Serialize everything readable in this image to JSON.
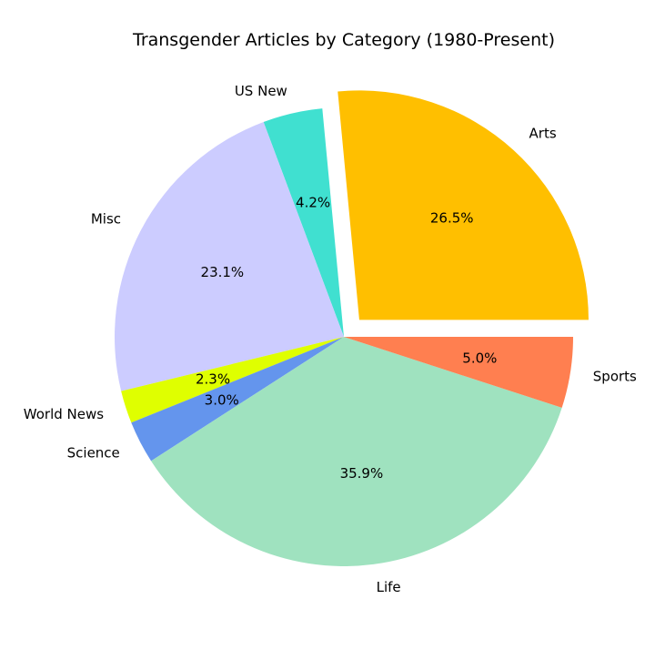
{
  "chart_data": {
    "type": "pie",
    "title": "Transgender Articles by Category (1980-Present)",
    "start_angle_deg": 0,
    "direction": "counterclockwise",
    "slices": [
      {
        "label": "Arts",
        "percent": 26.5,
        "percent_label": "26.5%",
        "color": "#ffbf00",
        "exploded": true
      },
      {
        "label": "US New",
        "percent": 4.2,
        "percent_label": "4.2%",
        "color": "#40e0d0",
        "exploded": false
      },
      {
        "label": "Misc",
        "percent": 23.1,
        "percent_label": "23.1%",
        "color": "#ccccff",
        "exploded": false
      },
      {
        "label": "World News",
        "percent": 2.3,
        "percent_label": "2.3%",
        "color": "#dfff00",
        "exploded": false
      },
      {
        "label": "Science",
        "percent": 3.0,
        "percent_label": "3.0%",
        "color": "#6495ed",
        "exploded": false
      },
      {
        "label": "Life",
        "percent": 35.9,
        "percent_label": "35.9%",
        "color": "#9fe2bf",
        "exploded": false
      },
      {
        "label": "Sports",
        "percent": 5.0,
        "percent_label": "5.0%",
        "color": "#ff7f50",
        "exploded": false
      }
    ]
  }
}
